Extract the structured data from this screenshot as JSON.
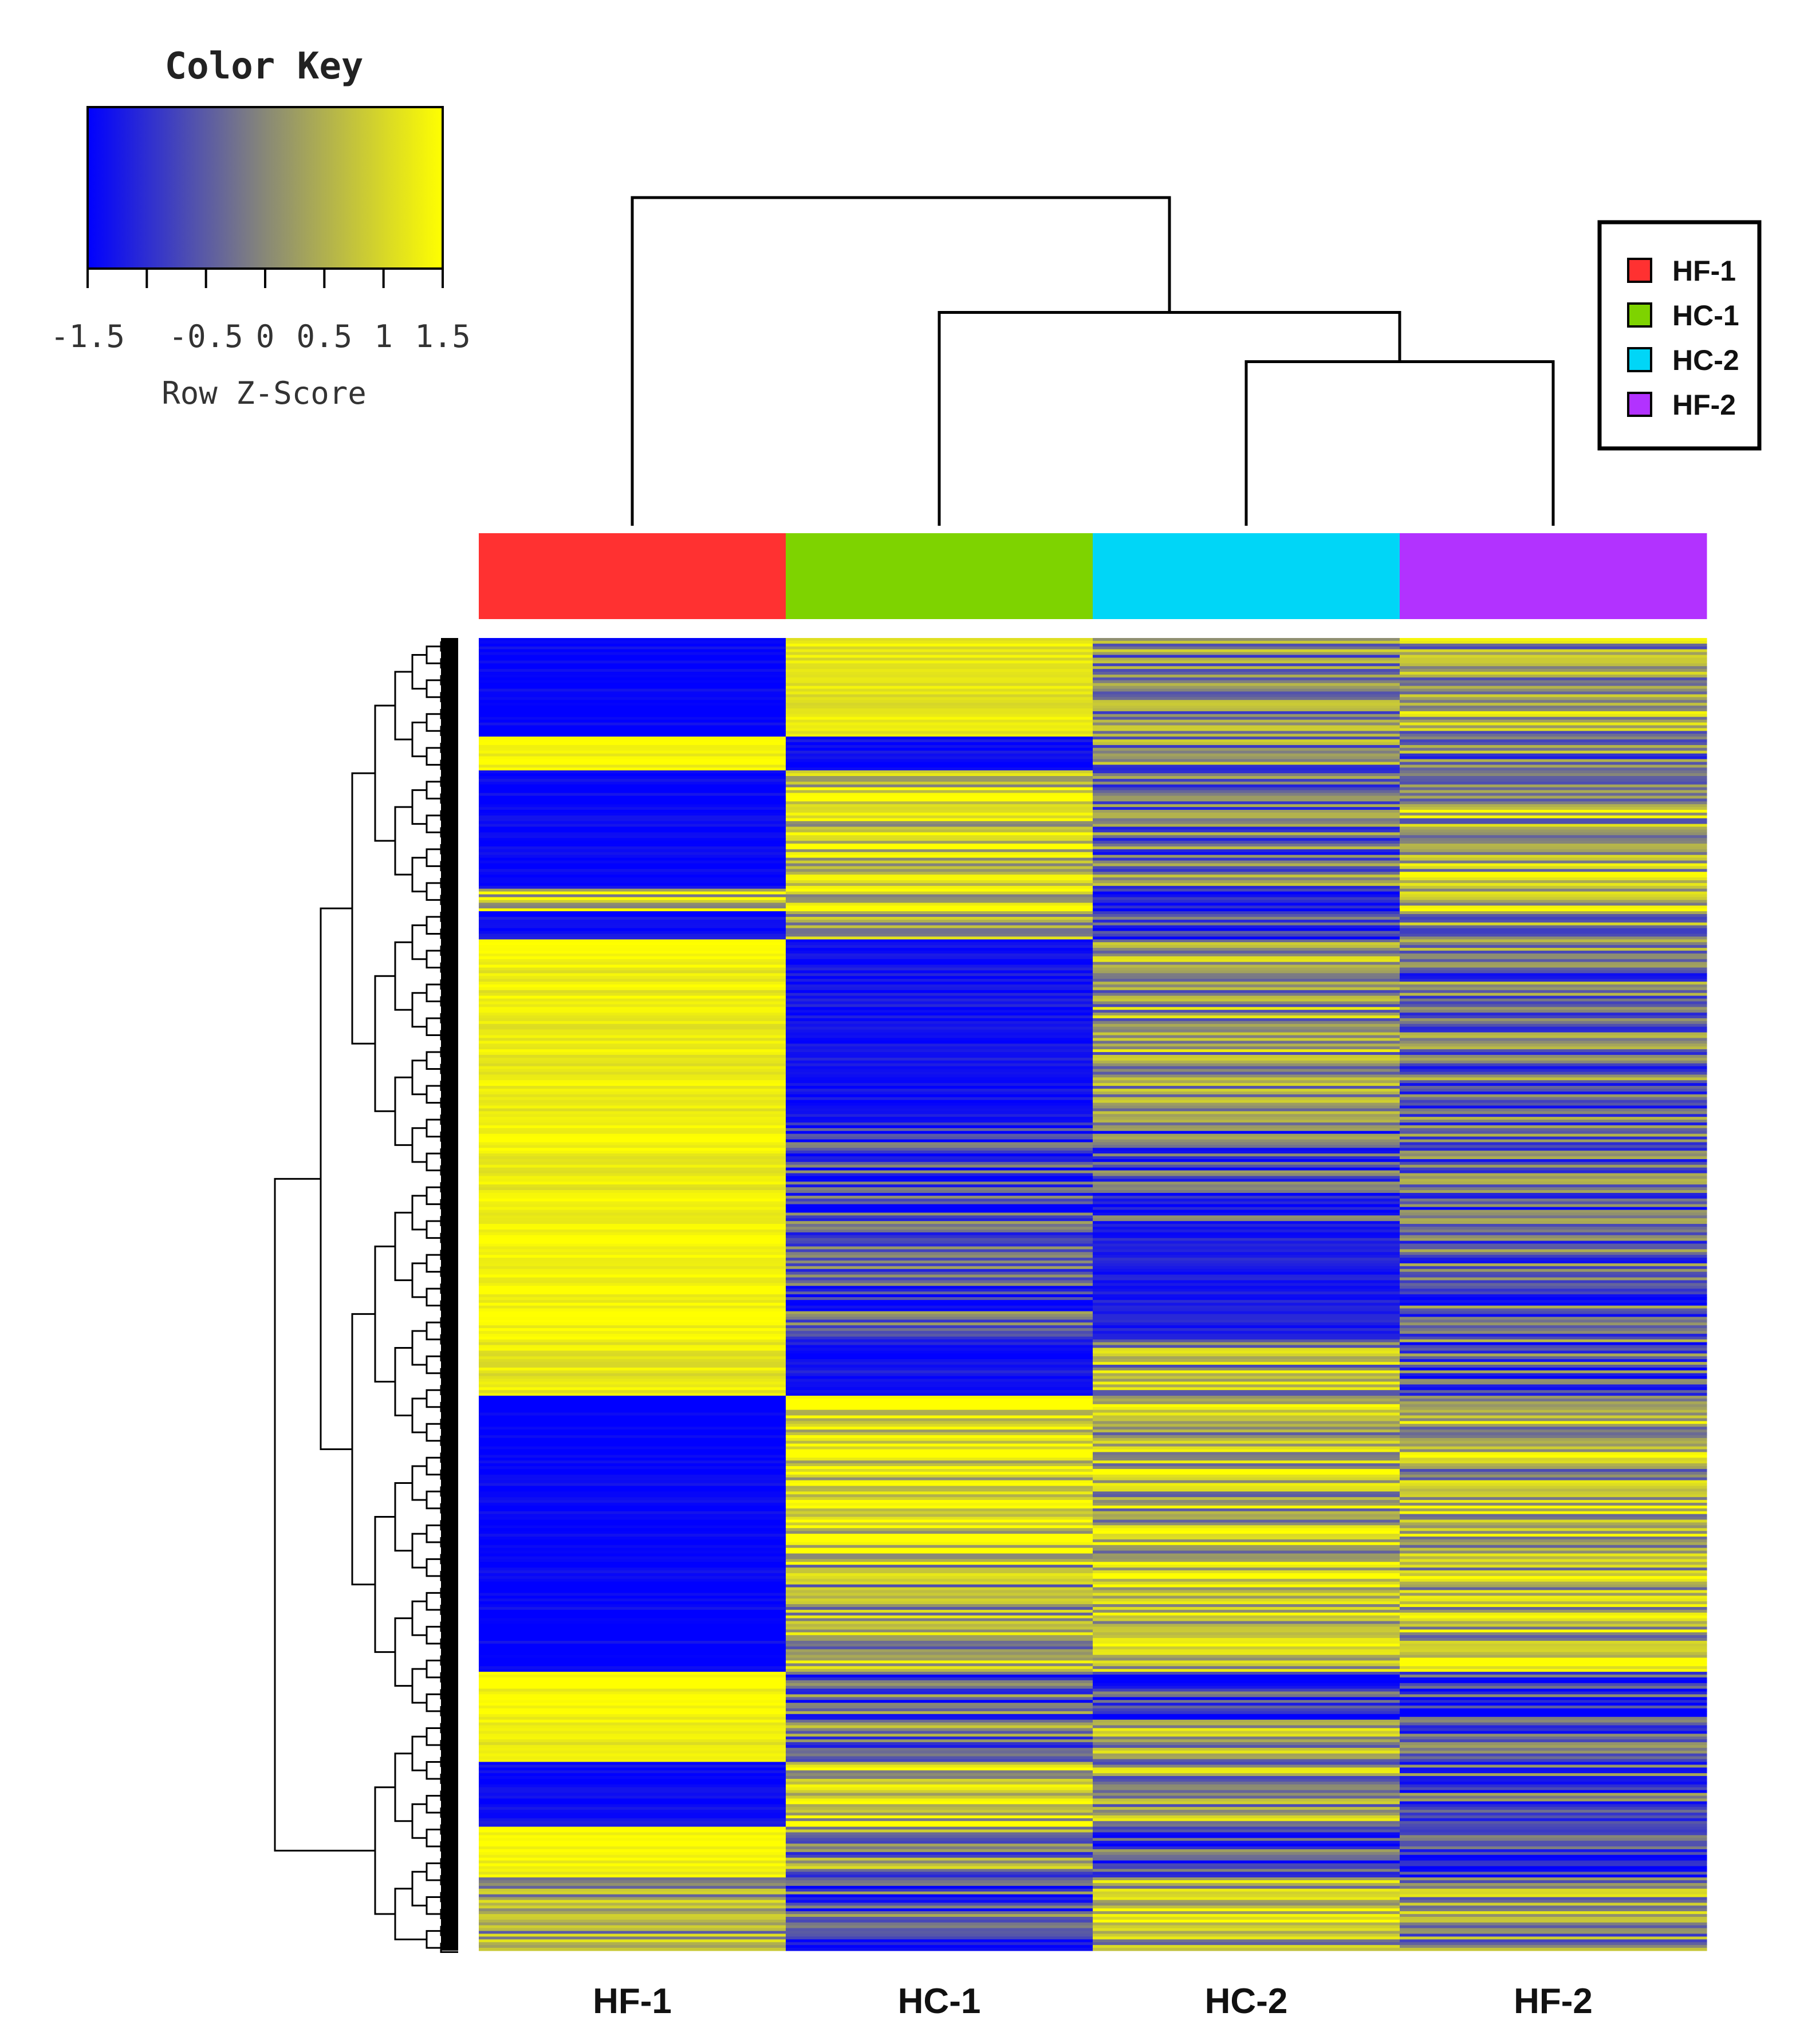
{
  "chart_data": {
    "type": "heatmap",
    "title": "",
    "columns": [
      "HF-1",
      "HC-1",
      "HC-2",
      "HF-2"
    ],
    "column_colors": {
      "HF-1": "#ff3131",
      "HC-1": "#7ed300",
      "HC-2": "#00d6f7",
      "HF-2": "#b232ff"
    },
    "color_key": {
      "title": "Color Key",
      "label": "Row Z-Score",
      "ticks": [
        -1.5,
        -0.5,
        0,
        0.5,
        1,
        1.5
      ],
      "tick_labels": [
        "-1.5",
        "-0.5",
        "0",
        "0.5",
        "1",
        "1.5"
      ],
      "range": [
        -1.5,
        1.5
      ],
      "low_color": "#0000ff",
      "mid_color": "#888877",
      "high_color": "#ffff00"
    },
    "legend": {
      "position": "top-right",
      "entries": [
        {
          "label": "HF-1",
          "color": "#ff3131"
        },
        {
          "label": "HC-1",
          "color": "#7ed300"
        },
        {
          "label": "HC-2",
          "color": "#00d6f7"
        },
        {
          "label": "HF-2",
          "color": "#b232ff"
        }
      ]
    },
    "column_dendrogram": {
      "merges": [
        {
          "left": "HC-2",
          "right": "HF-2",
          "height": 0.5
        },
        {
          "left": "HC-1",
          "right": "HC-2+HF-2",
          "height": 0.65
        },
        {
          "left": "HF-1",
          "right": "HC-1+HC-2+HF-2",
          "height": 1.0
        }
      ]
    },
    "row_blocks": [
      {
        "rows": 35,
        "values": [
          -1.5,
          1.2,
          0.0,
          0.3
        ]
      },
      {
        "rows": 12,
        "values": [
          1.4,
          -1.4,
          0.0,
          -0.2
        ]
      },
      {
        "rows": 42,
        "values": [
          -1.5,
          1.0,
          -0.3,
          0.4
        ]
      },
      {
        "rows": 8,
        "values": [
          0.8,
          0.9,
          -1.0,
          0.6
        ]
      },
      {
        "rows": 10,
        "values": [
          -1.4,
          0.6,
          -0.4,
          0.2
        ]
      },
      {
        "rows": 65,
        "values": [
          1.3,
          -1.3,
          0.3,
          -0.3
        ]
      },
      {
        "rows": 35,
        "values": [
          1.3,
          -0.8,
          -0.6,
          -0.4
        ]
      },
      {
        "rows": 42,
        "values": [
          1.4,
          -0.7,
          -1.2,
          -0.6
        ]
      },
      {
        "rows": 20,
        "values": [
          1.2,
          -1.3,
          0.4,
          -0.5
        ]
      },
      {
        "rows": 60,
        "values": [
          -1.5,
          1.1,
          0.6,
          0.4
        ]
      },
      {
        "rows": 38,
        "values": [
          -1.5,
          0.3,
          0.8,
          0.6
        ]
      },
      {
        "rows": 17,
        "values": [
          1.4,
          -0.5,
          -0.9,
          -1.0
        ]
      },
      {
        "rows": 15,
        "values": [
          1.2,
          -0.2,
          0.5,
          -0.6
        ]
      },
      {
        "rows": 23,
        "values": [
          -1.4,
          0.9,
          0.2,
          -0.5
        ]
      },
      {
        "rows": 18,
        "values": [
          1.4,
          0.0,
          -0.8,
          -0.9
        ]
      },
      {
        "rows": 26,
        "values": [
          0.4,
          -0.6,
          0.5,
          0.2
        ]
      }
    ]
  },
  "labels": {
    "color_key_title": "Color Key",
    "color_key_axis": "Row Z-Score"
  }
}
